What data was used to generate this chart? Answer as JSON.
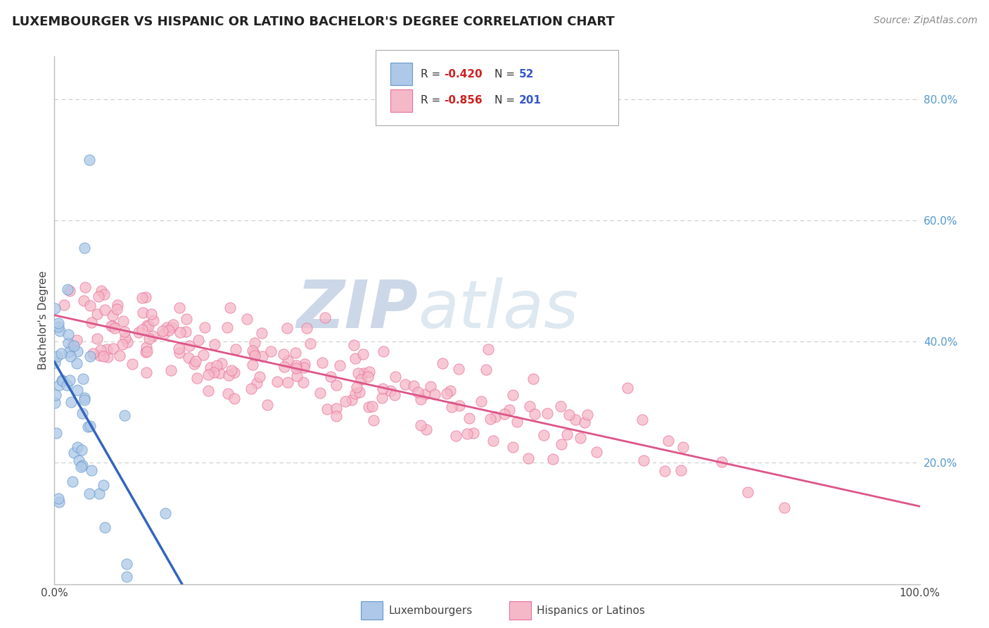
{
  "title": "LUXEMBOURGER VS HISPANIC OR LATINO BACHELOR'S DEGREE CORRELATION CHART",
  "source": "Source: ZipAtlas.com",
  "ylabel": "Bachelor's Degree",
  "watermark_zip": "ZIP",
  "watermark_atlas": "atlas",
  "xlim": [
    0.0,
    1.0
  ],
  "ylim": [
    0.0,
    0.87
  ],
  "xticks": [
    0.0,
    0.2,
    0.4,
    0.6,
    0.8,
    1.0
  ],
  "xticklabels": [
    "0.0%",
    "",
    "",
    "",
    "",
    "100.0%"
  ],
  "yticks_right": [
    0.2,
    0.4,
    0.6,
    0.8
  ],
  "yticklabels_right": [
    "20.0%",
    "40.0%",
    "60.0%",
    "80.0%"
  ],
  "blue_R": -0.42,
  "blue_N": 52,
  "pink_R": -0.856,
  "pink_N": 201,
  "blue_color": "#adc8e8",
  "blue_edge_color": "#6699cc",
  "pink_color": "#f5b8c8",
  "pink_edge_color": "#e8709a",
  "blue_line_color": "#3366bb",
  "pink_line_color": "#dd5588",
  "legend_label_blue": "Luxembourgers",
  "legend_label_pink": "Hispanics or Latinos",
  "title_color": "#222222",
  "axis_color": "#444444",
  "grid_color": "#cccccc",
  "stat_color_R": "#cc2222",
  "stat_color_N": "#3355cc",
  "watermark_color_zip": "#c8d8e8",
  "watermark_color_atlas": "#d8e4ee",
  "title_fontsize": 13,
  "source_fontsize": 10,
  "tick_fontsize": 11,
  "ylabel_fontsize": 11
}
